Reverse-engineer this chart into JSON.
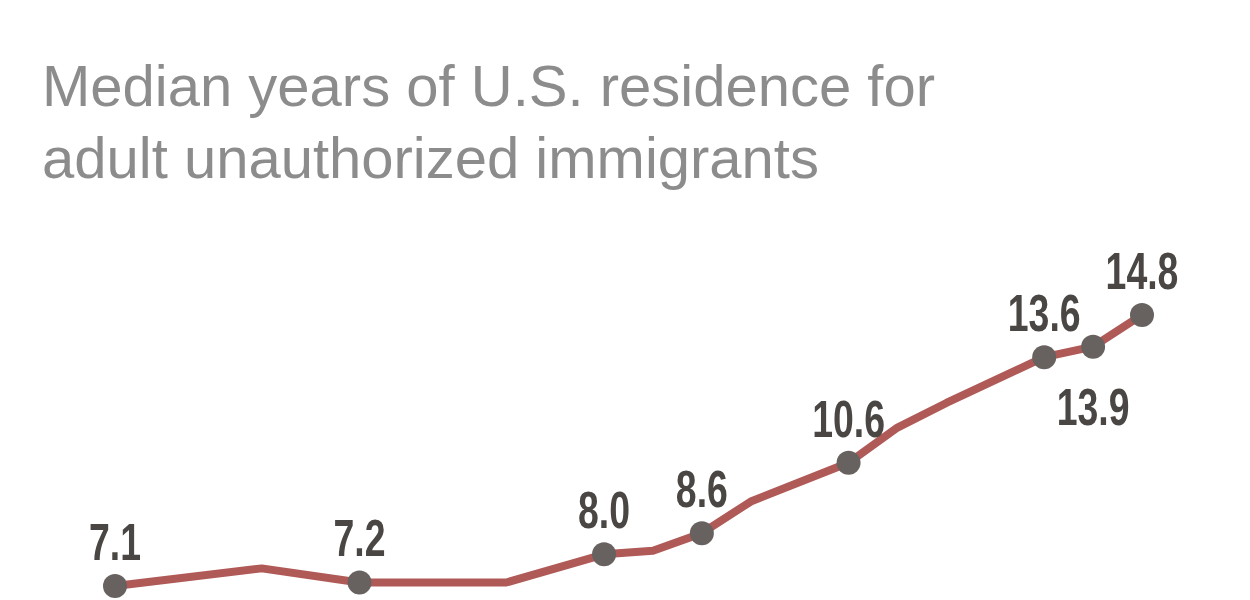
{
  "chart_data": {
    "type": "line",
    "subtitle": "Median years of U.S. residence for adult unauthorized immigrants",
    "categories": [
      null,
      null,
      null,
      null,
      null,
      null,
      null,
      null,
      null,
      null,
      null,
      null,
      null,
      null,
      null,
      null,
      null,
      null,
      null,
      null,
      null,
      null
    ],
    "series": [
      {
        "color": "#b05a58",
        "values": [
          7.1,
          null,
          null,
          7.6,
          null,
          7.2,
          null,
          null,
          7.2,
          null,
          8.0,
          8.1,
          8.6,
          9.5,
          null,
          10.6,
          11.6,
          12.3,
          null,
          13.6,
          13.9,
          14.8
        ],
        "value_labels": [
          "7.1",
          null,
          null,
          null,
          null,
          "7.2",
          null,
          null,
          null,
          null,
          "8.0",
          null,
          "8.6",
          null,
          null,
          "10.6",
          null,
          null,
          null,
          "13.6",
          "13.9",
          "14.8"
        ]
      }
    ],
    "marker": "circle"
  }
}
